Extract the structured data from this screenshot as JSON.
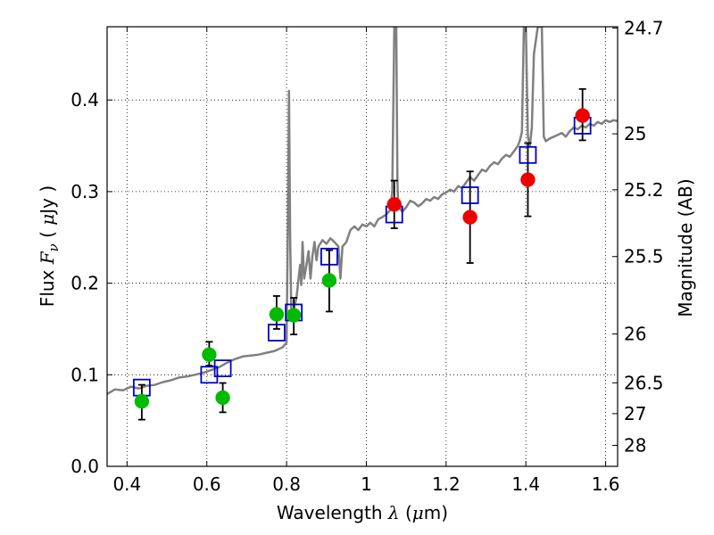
{
  "chart_data": {
    "type": "scatter",
    "xlabel": {
      "pre": "Wavelength  ",
      "sym": "λ",
      "mid": " (",
      "mu": "μ",
      "post": "m)"
    },
    "ylabel": {
      "pre": "Flux  ",
      "sym": "F",
      "sub": "ν",
      "mid": "  ( ",
      "mu": "μ",
      "post": "Jy )"
    },
    "y2label": "Magnitude (AB)",
    "xlim": [
      0.35,
      1.63
    ],
    "ylim": [
      0.0,
      0.48
    ],
    "xticks": [
      0.4,
      0.6,
      0.8,
      1.0,
      1.2,
      1.4,
      1.6
    ],
    "xtick_labels": [
      "0.4",
      "0.6",
      "0.8",
      "1",
      "1.2",
      "1.4",
      "1.6"
    ],
    "yticks": [
      0.0,
      0.1,
      0.2,
      0.3,
      0.4
    ],
    "ytick_labels": [
      "0.0",
      "0.1",
      "0.2",
      "0.3",
      "0.4"
    ],
    "mag_ticks": [
      {
        "label": "24.7",
        "mag": 24.7
      },
      {
        "label": "25",
        "mag": 25.0
      },
      {
        "label": "25.2",
        "mag": 25.2
      },
      {
        "label": "25.5",
        "mag": 25.5
      },
      {
        "label": "26",
        "mag": 26.0
      },
      {
        "label": "26.5",
        "mag": 26.5
      },
      {
        "label": "27",
        "mag": 27.0
      },
      {
        "label": "28",
        "mag": 28.0
      }
    ],
    "grid": true,
    "colors": {
      "spectrum": "#808080",
      "model": "#0000cc",
      "green": "#00bb00",
      "red": "#ee0000",
      "error": "#000000"
    },
    "spectrum": [
      [
        0.35,
        0.079
      ],
      [
        0.37,
        0.084
      ],
      [
        0.39,
        0.083
      ],
      [
        0.41,
        0.087
      ],
      [
        0.43,
        0.085
      ],
      [
        0.45,
        0.088
      ],
      [
        0.47,
        0.089
      ],
      [
        0.49,
        0.092
      ],
      [
        0.51,
        0.094
      ],
      [
        0.53,
        0.097
      ],
      [
        0.55,
        0.098
      ],
      [
        0.57,
        0.1
      ],
      [
        0.59,
        0.102
      ],
      [
        0.61,
        0.105
      ],
      [
        0.63,
        0.108
      ],
      [
        0.65,
        0.113
      ],
      [
        0.67,
        0.117
      ],
      [
        0.69,
        0.12
      ],
      [
        0.71,
        0.121
      ],
      [
        0.73,
        0.122
      ],
      [
        0.75,
        0.124
      ],
      [
        0.77,
        0.126
      ],
      [
        0.79,
        0.13
      ],
      [
        0.8,
        0.135
      ],
      [
        0.803,
        0.25
      ],
      [
        0.806,
        0.41
      ],
      [
        0.809,
        0.25
      ],
      [
        0.812,
        0.16
      ],
      [
        0.815,
        0.162
      ],
      [
        0.82,
        0.175
      ],
      [
        0.825,
        0.185
      ],
      [
        0.83,
        0.205
      ],
      [
        0.834,
        0.22
      ],
      [
        0.837,
        0.198
      ],
      [
        0.84,
        0.245
      ],
      [
        0.844,
        0.205
      ],
      [
        0.85,
        0.22
      ],
      [
        0.855,
        0.235
      ],
      [
        0.86,
        0.205
      ],
      [
        0.865,
        0.23
      ],
      [
        0.87,
        0.245
      ],
      [
        0.875,
        0.225
      ],
      [
        0.88,
        0.24
      ],
      [
        0.89,
        0.247
      ],
      [
        0.9,
        0.243
      ],
      [
        0.91,
        0.249
      ],
      [
        0.92,
        0.245
      ],
      [
        0.93,
        0.24
      ],
      [
        0.935,
        0.205
      ],
      [
        0.94,
        0.24
      ],
      [
        0.95,
        0.245
      ],
      [
        0.96,
        0.258
      ],
      [
        0.97,
        0.262
      ],
      [
        0.98,
        0.258
      ],
      [
        0.99,
        0.264
      ],
      [
        1.0,
        0.262
      ],
      [
        1.01,
        0.266
      ],
      [
        1.02,
        0.262
      ],
      [
        1.03,
        0.27
      ],
      [
        1.04,
        0.272
      ],
      [
        1.05,
        0.275
      ],
      [
        1.06,
        0.28
      ],
      [
        1.065,
        0.3
      ],
      [
        1.07,
        0.48
      ],
      [
        1.075,
        0.48
      ],
      [
        1.078,
        0.31
      ],
      [
        1.08,
        0.285
      ],
      [
        1.09,
        0.278
      ],
      [
        1.1,
        0.283
      ],
      [
        1.11,
        0.29
      ],
      [
        1.12,
        0.288
      ],
      [
        1.13,
        0.284
      ],
      [
        1.14,
        0.287
      ],
      [
        1.15,
        0.292
      ],
      [
        1.16,
        0.29
      ],
      [
        1.17,
        0.294
      ],
      [
        1.18,
        0.292
      ],
      [
        1.19,
        0.297
      ],
      [
        1.2,
        0.299
      ],
      [
        1.21,
        0.302
      ],
      [
        1.22,
        0.3
      ],
      [
        1.23,
        0.306
      ],
      [
        1.24,
        0.304
      ],
      [
        1.25,
        0.31
      ],
      [
        1.26,
        0.316
      ],
      [
        1.27,
        0.312
      ],
      [
        1.28,
        0.318
      ],
      [
        1.29,
        0.324
      ],
      [
        1.3,
        0.322
      ],
      [
        1.31,
        0.328
      ],
      [
        1.32,
        0.332
      ],
      [
        1.33,
        0.33
      ],
      [
        1.34,
        0.336
      ],
      [
        1.35,
        0.34
      ],
      [
        1.36,
        0.338
      ],
      [
        1.37,
        0.344
      ],
      [
        1.38,
        0.35
      ],
      [
        1.385,
        0.356
      ],
      [
        1.39,
        0.365
      ],
      [
        1.395,
        0.48
      ],
      [
        1.4,
        0.48
      ],
      [
        1.405,
        0.36
      ],
      [
        1.41,
        0.35
      ],
      [
        1.415,
        0.37
      ],
      [
        1.42,
        0.45
      ],
      [
        1.43,
        0.48
      ],
      [
        1.44,
        0.48
      ],
      [
        1.445,
        0.36
      ],
      [
        1.45,
        0.355
      ],
      [
        1.46,
        0.358
      ],
      [
        1.47,
        0.36
      ],
      [
        1.48,
        0.362
      ],
      [
        1.49,
        0.364
      ],
      [
        1.5,
        0.36
      ],
      [
        1.51,
        0.366
      ],
      [
        1.52,
        0.37
      ],
      [
        1.53,
        0.368
      ],
      [
        1.54,
        0.372
      ],
      [
        1.55,
        0.37
      ],
      [
        1.56,
        0.374
      ],
      [
        1.57,
        0.372
      ],
      [
        1.58,
        0.376
      ],
      [
        1.59,
        0.374
      ],
      [
        1.6,
        0.378
      ],
      [
        1.61,
        0.376
      ],
      [
        1.62,
        0.378
      ],
      [
        1.63,
        0.377
      ]
    ],
    "model_points": [
      {
        "x": 0.437,
        "y": 0.086
      },
      {
        "x": 0.606,
        "y": 0.1
      },
      {
        "x": 0.64,
        "y": 0.107
      },
      {
        "x": 0.775,
        "y": 0.146
      },
      {
        "x": 0.818,
        "y": 0.168
      },
      {
        "x": 0.907,
        "y": 0.229
      },
      {
        "x": 1.07,
        "y": 0.275
      },
      {
        "x": 1.26,
        "y": 0.296
      },
      {
        "x": 1.405,
        "y": 0.34
      },
      {
        "x": 1.542,
        "y": 0.372
      }
    ],
    "observed": [
      {
        "x": 0.437,
        "y": 0.071,
        "err_lo": 0.02,
        "err_hi": 0.018,
        "color": "green"
      },
      {
        "x": 0.606,
        "y": 0.122,
        "err_lo": 0.012,
        "err_hi": 0.014,
        "color": "green"
      },
      {
        "x": 0.64,
        "y": 0.075,
        "err_lo": 0.016,
        "err_hi": 0.016,
        "color": "green"
      },
      {
        "x": 0.775,
        "y": 0.166,
        "err_lo": 0.016,
        "err_hi": 0.02,
        "color": "green"
      },
      {
        "x": 0.818,
        "y": 0.165,
        "err_lo": 0.021,
        "err_hi": 0.019,
        "color": "green"
      },
      {
        "x": 0.907,
        "y": 0.203,
        "err_lo": 0.034,
        "err_hi": 0.033,
        "color": "green"
      },
      {
        "x": 1.07,
        "y": 0.286,
        "err_lo": 0.026,
        "err_hi": 0.026,
        "color": "red"
      },
      {
        "x": 1.26,
        "y": 0.272,
        "err_lo": 0.05,
        "err_hi": 0.05,
        "color": "red"
      },
      {
        "x": 1.405,
        "y": 0.313,
        "err_lo": 0.04,
        "err_hi": 0.04,
        "color": "red"
      },
      {
        "x": 1.542,
        "y": 0.383,
        "err_lo": 0.027,
        "err_hi": 0.029,
        "color": "red"
      }
    ]
  }
}
